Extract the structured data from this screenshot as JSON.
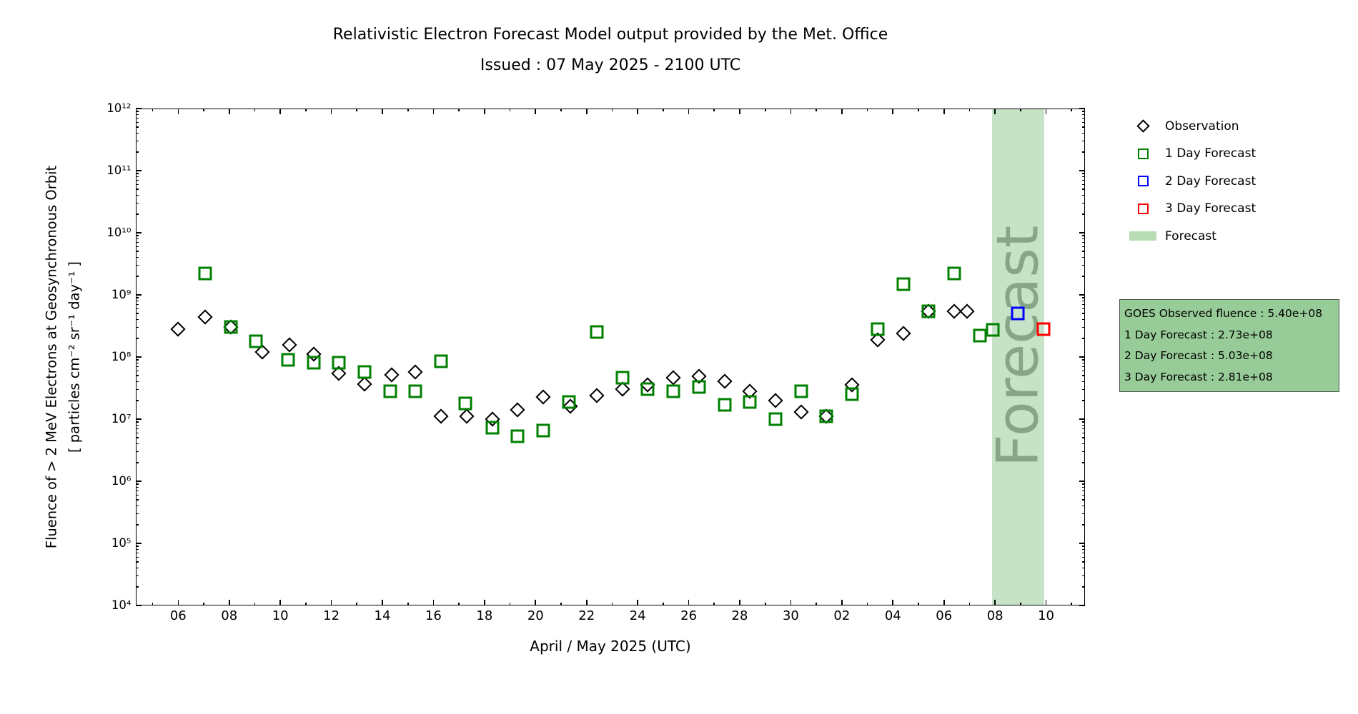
{
  "title": {
    "line1": "Relativistic Electron Forecast Model output provided by the Met. Office",
    "line2": "Issued : 07 May 2025 - 2100 UTC"
  },
  "axes": {
    "xlabel": "April / May 2025 (UTC)",
    "ylabel_line1": "Fluence of > 2 MeV Electrons at Geosynchronous Orbit",
    "ylabel_line2": "[ particles cm⁻² sr⁻¹ day⁻¹ ]"
  },
  "legend": {
    "entries": [
      {
        "label": "Observation",
        "swatch": "diamond",
        "color": "#000000"
      },
      {
        "label": "1 Day Forecast",
        "swatch": "square",
        "color": "#008000"
      },
      {
        "label": "2 Day Forecast",
        "swatch": "square",
        "color": "#0000ff"
      },
      {
        "label": "3 Day Forecast",
        "swatch": "square",
        "color": "#ff0000"
      },
      {
        "label": "Forecast",
        "swatch": "patch",
        "color": "#b7dcb4"
      }
    ]
  },
  "info_box": {
    "lines": [
      "GOES Observed fluence : 5.40e+08",
      "1 Day Forecast : 2.73e+08",
      "2 Day Forecast : 5.03e+08",
      "3 Day Forecast : 2.81e+08"
    ]
  },
  "colors": {
    "band_fill": "rgba(0,128,0,0.22)",
    "watermark_text": "rgba(58,90,60,0.45)",
    "infobox_bg": "#97cb97",
    "infobox_border": "#4c5e4c",
    "observation": "#000000",
    "forecast_1day": "#008000",
    "forecast_2day": "#0000ff",
    "forecast_3day": "#ff0000"
  },
  "chart_data": {
    "type": "scatter",
    "title": "Relativistic Electron Forecast Model output provided by the Met. Office",
    "subtitle": "Issued : 07 May 2025 - 2100 UTC",
    "xlabel": "April / May 2025 (UTC)",
    "ylabel": "Fluence of > 2 MeV Electrons at Geosynchronous Orbit [ particles cm⁻² sr⁻¹ day⁻¹ ]",
    "x_axis": {
      "unit": "day of month, April into May 2025 (days > 30 are May: 31 = May 01)",
      "range_days": [
        4.35,
        41.5
      ],
      "major_tick_days": [
        6,
        8,
        10,
        12,
        14,
        16,
        18,
        20,
        22,
        24,
        26,
        28,
        30,
        32,
        34,
        36,
        38,
        40
      ],
      "major_tick_labels": [
        "06",
        "08",
        "10",
        "12",
        "14",
        "16",
        "18",
        "20",
        "22",
        "24",
        "26",
        "28",
        "30",
        "02",
        "04",
        "06",
        "08",
        "10"
      ],
      "minor_tick_days": [
        5,
        7,
        9,
        11,
        13,
        15,
        17,
        19,
        21,
        23,
        25,
        27,
        29,
        31,
        33,
        35,
        37,
        39,
        41
      ]
    },
    "y_axis": {
      "scale": "log",
      "range": [
        10000.0,
        1000000000000.0
      ],
      "tick_decades": [
        4,
        5,
        6,
        7,
        8,
        9,
        10,
        11,
        12
      ],
      "tick_labels": [
        "10⁴",
        "10⁵",
        "10⁶",
        "10⁷",
        "10⁸",
        "10⁹",
        "10¹⁰",
        "10¹¹",
        "10¹²"
      ],
      "minor_tick_multiples": [
        2,
        3,
        4,
        5,
        6,
        7,
        8,
        9
      ]
    },
    "band": {
      "start_day": 37.87,
      "end_day": 39.92,
      "label": "Forecast"
    },
    "series": [
      {
        "name": "Observation",
        "marker": "diamond",
        "color": "#000000",
        "point_name": "observation-point",
        "points": [
          [
            6.0,
            280000000.0
          ],
          [
            7.05,
            440000000.0
          ],
          [
            8.05,
            300000000.0
          ],
          [
            9.3,
            120000000.0
          ],
          [
            10.35,
            155000000.0
          ],
          [
            11.3,
            110000000.0
          ],
          [
            12.3,
            55000000.0
          ],
          [
            13.3,
            37000000.0
          ],
          [
            14.35,
            52000000.0
          ],
          [
            15.3,
            58000000.0
          ],
          [
            16.3,
            11000000.0
          ],
          [
            17.3,
            11000000.0
          ],
          [
            18.3,
            10000000.0
          ],
          [
            19.3,
            14000000.0
          ],
          [
            20.3,
            23000000.0
          ],
          [
            21.35,
            16000000.0
          ],
          [
            22.4,
            24000000.0
          ],
          [
            23.4,
            30000000.0
          ],
          [
            24.4,
            36000000.0
          ],
          [
            25.4,
            46000000.0
          ],
          [
            26.4,
            49000000.0
          ],
          [
            27.4,
            41000000.0
          ],
          [
            28.4,
            28000000.0
          ],
          [
            29.4,
            20000000.0
          ],
          [
            30.4,
            13000000.0
          ],
          [
            31.4,
            11000000.0
          ],
          [
            32.4,
            36000000.0
          ],
          [
            33.4,
            190000000.0
          ],
          [
            34.4,
            240000000.0
          ],
          [
            35.4,
            550000000.0
          ],
          [
            36.4,
            540000000.0
          ],
          [
            36.9,
            540000000.0
          ]
        ]
      },
      {
        "name": "1 Day Forecast",
        "marker": "square",
        "color": "#008000",
        "point_name": "one-day-forecast-point",
        "points": [
          [
            7.05,
            2200000000.0
          ],
          [
            8.05,
            300000000.0
          ],
          [
            9.05,
            180000000.0
          ],
          [
            10.3,
            90000000.0
          ],
          [
            11.3,
            80000000.0
          ],
          [
            12.3,
            80000000.0
          ],
          [
            13.3,
            58000000.0
          ],
          [
            14.3,
            28000000.0
          ],
          [
            15.3,
            28000000.0
          ],
          [
            16.3,
            85000000.0
          ],
          [
            17.25,
            18000000.0
          ],
          [
            18.3,
            7200000.0
          ],
          [
            19.3,
            5300000.0
          ],
          [
            20.3,
            6500000.0
          ],
          [
            21.3,
            19000000.0
          ],
          [
            22.4,
            250000000.0
          ],
          [
            23.4,
            47000000.0
          ],
          [
            24.4,
            30000000.0
          ],
          [
            25.4,
            28000000.0
          ],
          [
            26.4,
            33000000.0
          ],
          [
            27.4,
            17000000.0
          ],
          [
            28.4,
            19000000.0
          ],
          [
            29.4,
            10000000.0
          ],
          [
            30.4,
            28000000.0
          ],
          [
            31.4,
            11000000.0
          ],
          [
            32.4,
            25000000.0
          ],
          [
            33.4,
            280000000.0
          ],
          [
            34.4,
            1500000000.0
          ],
          [
            35.4,
            550000000.0
          ],
          [
            36.4,
            2200000000.0
          ],
          [
            37.4,
            220000000.0
          ],
          [
            37.9,
            273000000.0
          ]
        ]
      },
      {
        "name": "2 Day Forecast",
        "marker": "square",
        "color": "#0000ff",
        "point_name": "two-day-forecast-point",
        "points": [
          [
            38.9,
            503000000.0
          ]
        ]
      },
      {
        "name": "3 Day Forecast",
        "marker": "square",
        "color": "#ff0000",
        "point_name": "three-day-forecast-point",
        "points": [
          [
            39.9,
            281000000.0
          ]
        ]
      }
    ]
  }
}
